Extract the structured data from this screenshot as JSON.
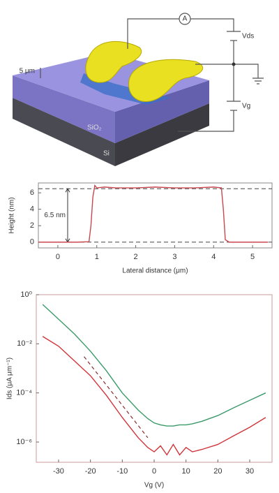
{
  "diagram": {
    "ammeter": "A",
    "drain_source_voltage": "Vds",
    "gate_voltage": "Vg",
    "scale": "5 μm",
    "oxide": "SiO₂",
    "substrate": "Si"
  },
  "chart_data": [
    {
      "type": "line",
      "x_label": "Lateral distance (μm)",
      "y_label": "Height (nm)",
      "x": [
        -0.5,
        0,
        0.5,
        0.8,
        0.85,
        0.9,
        0.95,
        1.0,
        1.2,
        1.5,
        2,
        2.5,
        3,
        3.5,
        4,
        4.2,
        4.25,
        4.3,
        4.4,
        4.7,
        5,
        5.4
      ],
      "series": [
        {
          "color": "#c8474f",
          "values": [
            0,
            0,
            0,
            0.05,
            2,
            5.5,
            6.9,
            6.6,
            6.7,
            6.6,
            6.6,
            6.7,
            6.6,
            6.6,
            6.7,
            6.6,
            4,
            0.3,
            0,
            0,
            0,
            0
          ]
        }
      ],
      "xlim": [
        -0.5,
        5.5
      ],
      "xticks": [
        0,
        1,
        2,
        3,
        4,
        5
      ],
      "ylim": [
        -0.7,
        7.2
      ],
      "yticks": [
        0,
        2,
        4,
        6
      ],
      "reference_lines": [
        0,
        6.5
      ],
      "annotation": "6.5 nm"
    },
    {
      "type": "line",
      "log_y": true,
      "x_label": "Vg (V)",
      "y_label": "Ids (μA μm⁻¹)",
      "x": [
        -35,
        -30,
        -25,
        -20,
        -15,
        -10,
        -5,
        -2,
        0,
        2,
        4,
        6,
        8,
        10,
        12,
        15,
        20,
        25,
        30,
        35
      ],
      "series": [
        {
          "color": "#3a9a6a",
          "values": [
            0.4,
            0.1,
            0.025,
            0.005,
            0.0008,
            0.0001,
            2e-05,
            9e-06,
            6e-06,
            5e-06,
            4.5e-06,
            4.5e-06,
            5e-06,
            5e-06,
            5.5e-06,
            7e-06,
            1.2e-05,
            2.5e-05,
            5e-05,
            0.0001
          ]
        },
        {
          "color": "#d0343a",
          "values": [
            0.02,
            0.008,
            0.002,
            0.0005,
            8e-05,
            1e-05,
            1.5e-06,
            6e-07,
            4e-07,
            7e-07,
            3e-07,
            8e-07,
            3e-07,
            6e-07,
            4e-07,
            5e-07,
            8e-07,
            1.8e-06,
            4e-06,
            1e-05
          ]
        }
      ],
      "fit_line": {
        "x": [
          -22,
          -2
        ],
        "values": [
          0.003,
          1.5e-06
        ]
      },
      "xlim": [
        -37,
        37
      ],
      "xticks": [
        -30,
        -20,
        -10,
        0,
        10,
        20,
        30
      ],
      "ylim": [
        1.5e-07,
        1
      ],
      "yticks": [
        {
          "value": 1,
          "label": "10⁰"
        },
        {
          "value": 0.01,
          "label": "10⁻²"
        },
        {
          "value": 0.0001,
          "label": "10⁻⁴"
        },
        {
          "value": 1e-06,
          "label": "10⁻⁶"
        }
      ]
    }
  ]
}
